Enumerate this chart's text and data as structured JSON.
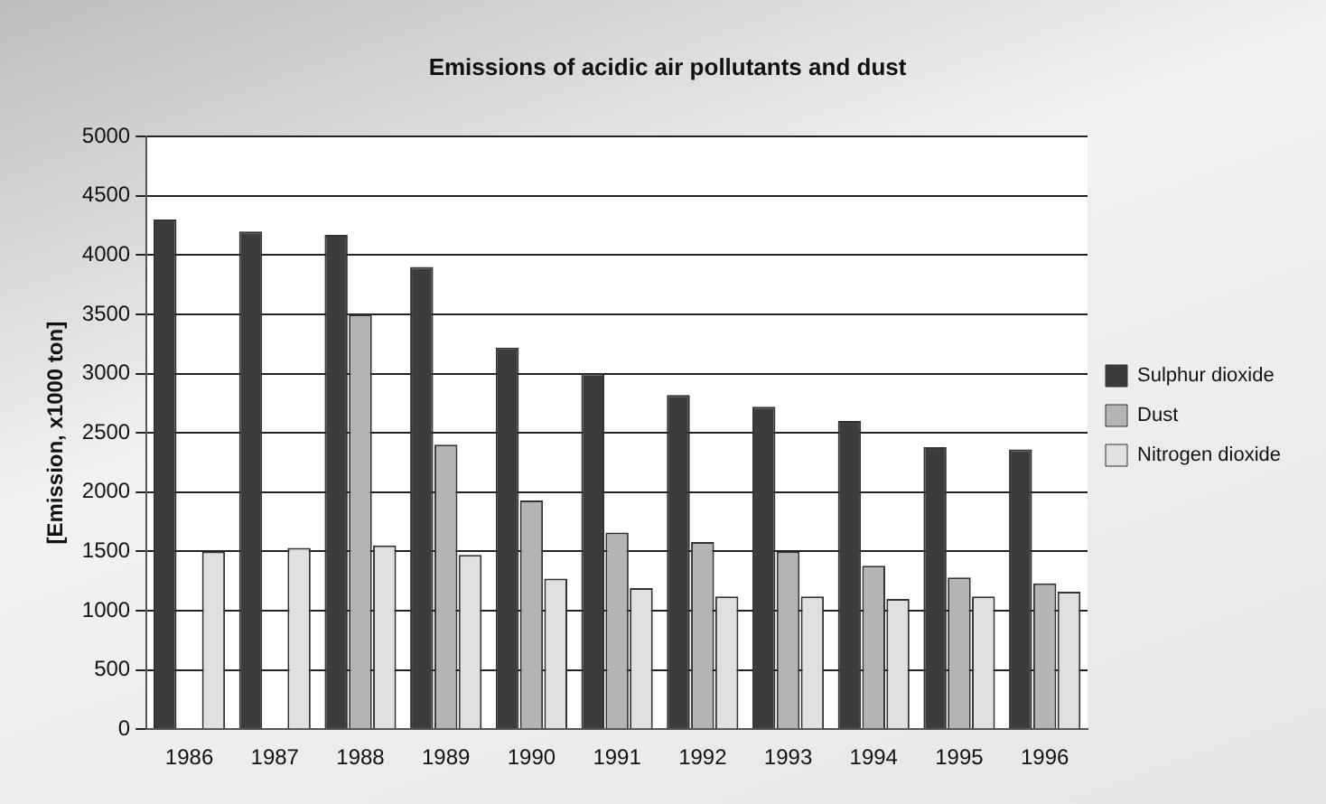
{
  "chart_data": {
    "type": "bar",
    "title": "Emissions of acidic air pollutants and dust",
    "ylabel": "[Emission, x1000 ton]",
    "categories": [
      "1986",
      "1987",
      "1988",
      "1989",
      "1990",
      "1991",
      "1992",
      "1993",
      "1994",
      "1995",
      "1996"
    ],
    "series": [
      {
        "name": "Sulphur dioxide",
        "color": "#3c3c3c",
        "values": [
          4300,
          4200,
          4170,
          3900,
          3220,
          3000,
          2820,
          2720,
          2600,
          2380,
          2360
        ]
      },
      {
        "name": "Dust",
        "color": "#b4b4b4",
        "values": [
          null,
          null,
          3500,
          2400,
          1930,
          1660,
          1580,
          1500,
          1380,
          1280,
          1230
        ]
      },
      {
        "name": "Nitrogen dioxide",
        "color": "#e0e0e0",
        "values": [
          1500,
          1530,
          1550,
          1470,
          1270,
          1190,
          1120,
          1120,
          1100,
          1120,
          1160
        ]
      }
    ],
    "ylim": [
      0,
      5000
    ],
    "yticks": [
      0,
      500,
      1000,
      1500,
      2000,
      2500,
      3000,
      3500,
      4000,
      4500,
      5000
    ],
    "grid": "y",
    "legend": "right"
  }
}
